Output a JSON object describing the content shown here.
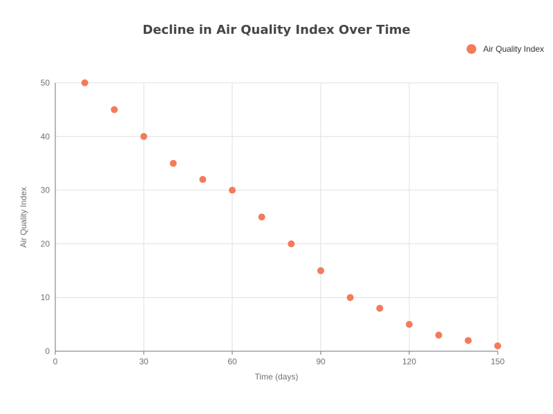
{
  "chart_data": {
    "type": "scatter",
    "title": "Decline in Air Quality Index Over Time",
    "xlabel": "Time (days)",
    "ylabel": "Air Quality Index",
    "xlim": [
      0,
      150
    ],
    "ylim": [
      0,
      50
    ],
    "xticks": [
      0,
      30,
      60,
      90,
      120,
      150
    ],
    "yticks": [
      0,
      10,
      20,
      30,
      40,
      50
    ],
    "grid": true,
    "legend_position": "top-right",
    "series": [
      {
        "name": "Air Quality Index",
        "color": "#f47a5a",
        "points": [
          {
            "x": 10,
            "y": 50
          },
          {
            "x": 20,
            "y": 45
          },
          {
            "x": 30,
            "y": 40
          },
          {
            "x": 40,
            "y": 35
          },
          {
            "x": 50,
            "y": 32
          },
          {
            "x": 60,
            "y": 30
          },
          {
            "x": 70,
            "y": 25
          },
          {
            "x": 80,
            "y": 20
          },
          {
            "x": 90,
            "y": 15
          },
          {
            "x": 100,
            "y": 10
          },
          {
            "x": 110,
            "y": 8
          },
          {
            "x": 120,
            "y": 5
          },
          {
            "x": 130,
            "y": 3
          },
          {
            "x": 140,
            "y": 2
          },
          {
            "x": 150,
            "y": 1
          }
        ]
      }
    ]
  }
}
